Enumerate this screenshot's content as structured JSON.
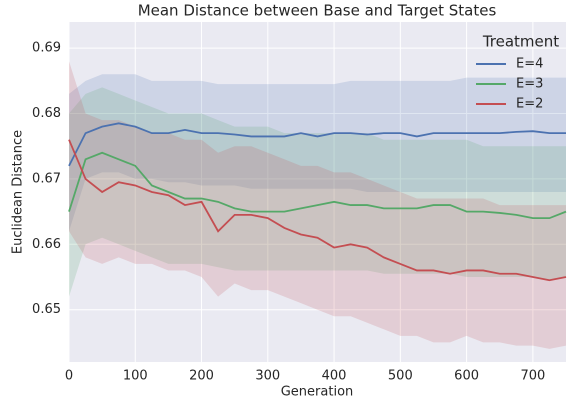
{
  "chart_data": {
    "type": "line",
    "title": "Mean Distance between Base and Target States",
    "xlabel": "Generation",
    "ylabel": "Euclidean Distance",
    "legend_title": "Treatment",
    "legend": "upper right",
    "grid": true,
    "x": [
      0,
      25,
      50,
      75,
      100,
      125,
      150,
      175,
      200,
      225,
      250,
      275,
      300,
      325,
      350,
      375,
      400,
      425,
      450,
      475,
      500,
      525,
      550,
      575,
      600,
      625,
      650,
      675,
      700,
      725,
      750
    ],
    "xlim": [
      0,
      750
    ],
    "xticks": [
      0,
      100,
      200,
      300,
      400,
      500,
      600,
      700
    ],
    "ylim": [
      0.642,
      0.694
    ],
    "yticks": [
      0.65,
      0.66,
      0.67,
      0.68,
      0.69
    ],
    "series": [
      {
        "name": "E=4",
        "color": "#4c72b0",
        "values": [
          0.672,
          0.677,
          0.678,
          0.6785,
          0.678,
          0.677,
          0.677,
          0.6775,
          0.677,
          0.677,
          0.6768,
          0.6765,
          0.6765,
          0.6765,
          0.677,
          0.6765,
          0.677,
          0.677,
          0.6768,
          0.677,
          0.677,
          0.6765,
          0.677,
          0.677,
          0.677,
          0.677,
          0.677,
          0.6772,
          0.6773,
          0.677,
          0.677
        ],
        "upper": [
          0.683,
          0.685,
          0.686,
          0.686,
          0.686,
          0.685,
          0.685,
          0.685,
          0.685,
          0.6845,
          0.6845,
          0.6845,
          0.6845,
          0.6845,
          0.6845,
          0.6845,
          0.6845,
          0.685,
          0.685,
          0.685,
          0.685,
          0.685,
          0.685,
          0.685,
          0.6855,
          0.6855,
          0.6855,
          0.6855,
          0.6855,
          0.6855,
          0.6855
        ],
        "lower": [
          0.662,
          0.67,
          0.671,
          0.671,
          0.67,
          0.67,
          0.6695,
          0.6695,
          0.669,
          0.669,
          0.669,
          0.6685,
          0.6685,
          0.6685,
          0.6685,
          0.6685,
          0.6685,
          0.6685,
          0.668,
          0.668,
          0.668,
          0.668,
          0.668,
          0.668,
          0.668,
          0.668,
          0.668,
          0.668,
          0.668,
          0.668,
          0.668
        ]
      },
      {
        "name": "E=3",
        "color": "#55a868",
        "values": [
          0.665,
          0.673,
          0.674,
          0.673,
          0.672,
          0.669,
          0.668,
          0.667,
          0.667,
          0.6665,
          0.6655,
          0.665,
          0.665,
          0.665,
          0.6655,
          0.666,
          0.6665,
          0.666,
          0.666,
          0.6655,
          0.6655,
          0.6655,
          0.666,
          0.666,
          0.665,
          0.665,
          0.6648,
          0.6645,
          0.664,
          0.664,
          0.665
        ],
        "upper": [
          0.68,
          0.683,
          0.684,
          0.683,
          0.682,
          0.681,
          0.68,
          0.68,
          0.68,
          0.679,
          0.678,
          0.678,
          0.678,
          0.677,
          0.677,
          0.677,
          0.677,
          0.677,
          0.677,
          0.676,
          0.676,
          0.676,
          0.676,
          0.676,
          0.676,
          0.675,
          0.675,
          0.675,
          0.675,
          0.675,
          0.675
        ],
        "lower": [
          0.652,
          0.66,
          0.661,
          0.66,
          0.659,
          0.658,
          0.657,
          0.657,
          0.657,
          0.6565,
          0.656,
          0.656,
          0.656,
          0.656,
          0.656,
          0.656,
          0.656,
          0.656,
          0.656,
          0.6555,
          0.6555,
          0.6555,
          0.6555,
          0.6555,
          0.655,
          0.655,
          0.655,
          0.655,
          0.655,
          0.6545,
          0.655
        ]
      },
      {
        "name": "E=2",
        "color": "#c44e52",
        "values": [
          0.676,
          0.67,
          0.668,
          0.6695,
          0.669,
          0.668,
          0.6675,
          0.666,
          0.6665,
          0.662,
          0.6645,
          0.6645,
          0.664,
          0.6625,
          0.6615,
          0.661,
          0.6595,
          0.66,
          0.6595,
          0.658,
          0.657,
          0.656,
          0.656,
          0.6555,
          0.656,
          0.656,
          0.6555,
          0.6555,
          0.655,
          0.6545,
          0.655
        ],
        "upper": [
          0.688,
          0.68,
          0.679,
          0.679,
          0.678,
          0.677,
          0.677,
          0.676,
          0.676,
          0.674,
          0.675,
          0.675,
          0.674,
          0.673,
          0.672,
          0.672,
          0.671,
          0.671,
          0.67,
          0.669,
          0.668,
          0.667,
          0.667,
          0.667,
          0.667,
          0.667,
          0.666,
          0.666,
          0.666,
          0.666,
          0.666
        ],
        "lower": [
          0.662,
          0.658,
          0.657,
          0.658,
          0.657,
          0.657,
          0.656,
          0.656,
          0.655,
          0.652,
          0.654,
          0.653,
          0.653,
          0.652,
          0.651,
          0.65,
          0.649,
          0.649,
          0.648,
          0.647,
          0.646,
          0.646,
          0.645,
          0.645,
          0.646,
          0.645,
          0.645,
          0.6445,
          0.6445,
          0.644,
          0.6445
        ]
      }
    ]
  }
}
